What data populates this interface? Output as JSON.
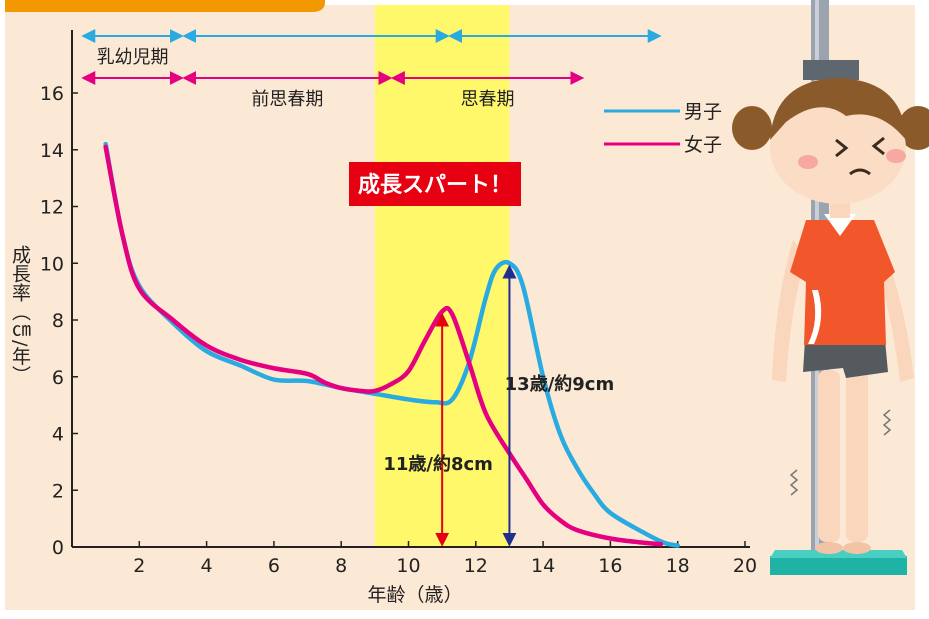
{
  "chart_data": {
    "type": "line",
    "ylabel": "成長率（㎝/年）",
    "xlabel": "年齢（歳）",
    "xlim": [
      0,
      20
    ],
    "ylim": [
      0,
      16
    ],
    "x_ticks": [
      2,
      4,
      6,
      8,
      10,
      12,
      14,
      16,
      18,
      20
    ],
    "y_ticks": [
      0,
      2,
      4,
      6,
      8,
      10,
      12,
      14,
      16
    ],
    "legend_position": "top-right",
    "series": [
      {
        "name": "男子",
        "color": "#29ABE2",
        "points": [
          [
            1.0,
            14.2
          ],
          [
            1.5,
            11.0
          ],
          [
            2.0,
            9.2
          ],
          [
            3.0,
            7.9
          ],
          [
            4.0,
            6.9
          ],
          [
            5.0,
            6.4
          ],
          [
            6.0,
            5.9
          ],
          [
            7.0,
            5.85
          ],
          [
            8.0,
            5.6
          ],
          [
            9.0,
            5.4
          ],
          [
            10.0,
            5.2
          ],
          [
            10.8,
            5.1
          ],
          [
            11.3,
            5.2
          ],
          [
            11.8,
            6.5
          ],
          [
            12.3,
            8.8
          ],
          [
            12.6,
            9.8
          ],
          [
            13.0,
            10.0
          ],
          [
            13.4,
            9.2
          ],
          [
            14.0,
            6.0
          ],
          [
            14.5,
            4.0
          ],
          [
            15.0,
            2.8
          ],
          [
            15.5,
            1.9
          ],
          [
            16.0,
            1.2
          ],
          [
            17.0,
            0.5
          ],
          [
            17.6,
            0.15
          ],
          [
            18.0,
            0.05
          ]
        ]
      },
      {
        "name": "女子",
        "color": "#E4007F",
        "points": [
          [
            1.0,
            14.1
          ],
          [
            1.5,
            11.0
          ],
          [
            2.0,
            9.1
          ],
          [
            3.0,
            8.0
          ],
          [
            4.0,
            7.1
          ],
          [
            5.0,
            6.6
          ],
          [
            6.0,
            6.3
          ],
          [
            7.0,
            6.1
          ],
          [
            7.5,
            5.8
          ],
          [
            8.0,
            5.6
          ],
          [
            8.6,
            5.5
          ],
          [
            9.0,
            5.5
          ],
          [
            9.5,
            5.75
          ],
          [
            10.0,
            6.2
          ],
          [
            10.5,
            7.3
          ],
          [
            11.0,
            8.3
          ],
          [
            11.3,
            8.2
          ],
          [
            11.8,
            6.5
          ],
          [
            12.3,
            4.7
          ],
          [
            13.0,
            3.3
          ],
          [
            13.5,
            2.4
          ],
          [
            14.0,
            1.5
          ],
          [
            14.5,
            0.95
          ],
          [
            15.0,
            0.6
          ],
          [
            16.0,
            0.3
          ],
          [
            17.0,
            0.15
          ],
          [
            17.5,
            0.1
          ]
        ]
      }
    ],
    "highlight_band": {
      "x_from": 9,
      "x_to": 13,
      "color": "#FFF86B"
    },
    "stage_arrows_row1": [
      {
        "label": "乳幼児期",
        "x_from": 0.3,
        "x_to": 3.3
      },
      {
        "label": "",
        "x_from": 3.3,
        "x_to": 11.2
      },
      {
        "label": "",
        "x_from": 11.2,
        "x_to": 17.5
      }
    ],
    "stage_arrows_row2": [
      {
        "label": "",
        "x_from": 0.3,
        "x_to": 3.3
      },
      {
        "label": "前思春期",
        "x_from": 3.3,
        "x_to": 9.5
      },
      {
        "label": "思春期",
        "x_from": 9.5,
        "x_to": 15.2
      }
    ],
    "peak_markers": [
      {
        "label": "11歳/約8cm",
        "x": 11,
        "y": 8.3,
        "color": "#E60012"
      },
      {
        "label": "13歳/約9cm",
        "x": 13,
        "y": 10.0,
        "color": "#1D2F8F"
      }
    ],
    "growth_spurt_label": "成長スパート！"
  }
}
